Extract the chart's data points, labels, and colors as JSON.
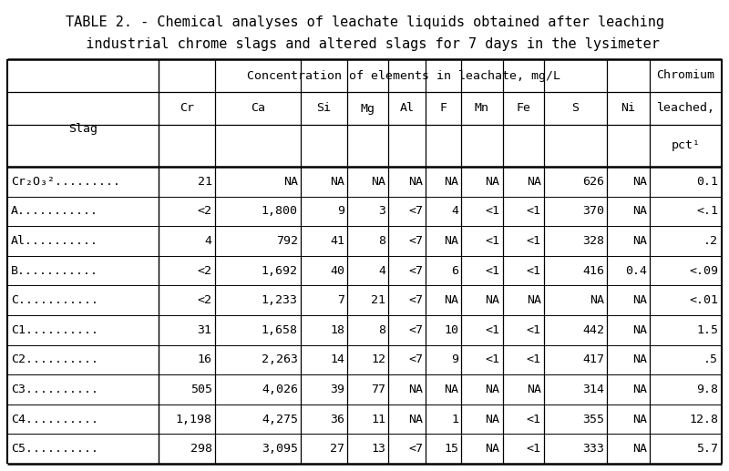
{
  "title_line1": "TABLE 2. - Chemical analyses of leachate liquids obtained after leaching",
  "title_line2": "  industrial chrome slags and altered slags for 7 days in the lysimeter",
  "header_group": "Concentration of elements in leachate, mg/L",
  "col_headers": [
    "Cr",
    "Ca",
    "Si",
    "Mg",
    "Al",
    "F",
    "Mn",
    "Fe",
    "S",
    "Ni"
  ],
  "slag_col_header": "Slag",
  "last_col_lines": [
    "Chromium",
    "leached,",
    "pct¹"
  ],
  "rows": [
    [
      "Cr₂O₃².........",
      "21",
      "NA",
      "NA",
      "NA",
      "NA",
      "NA",
      "NA",
      "NA",
      "626",
      "NA",
      "0.1"
    ],
    [
      "A...........",
      "<2",
      "1,800",
      "9",
      "3",
      "<7",
      "4",
      "<1",
      "<1",
      "370",
      "NA",
      "<.1"
    ],
    [
      "Al..........",
      "4",
      "792",
      "41",
      "8",
      "<7",
      "NA",
      "<1",
      "<1",
      "328",
      "NA",
      ".2"
    ],
    [
      "B...........",
      "<2",
      "1,692",
      "40",
      "4",
      "<7",
      "6",
      "<1",
      "<1",
      "416",
      "0.4",
      "<.09"
    ],
    [
      "C...........",
      "<2",
      "1,233",
      "7",
      "21",
      "<7",
      "NA",
      "NA",
      "NA",
      "NA",
      "NA",
      "<.01"
    ],
    [
      "C1..........",
      "31",
      "1,658",
      "18",
      "8",
      "<7",
      "10",
      "<1",
      "<1",
      "442",
      "NA",
      "1.5"
    ],
    [
      "C2..........",
      "16",
      "2,263",
      "14",
      "12",
      "<7",
      "9",
      "<1",
      "<1",
      "417",
      "NA",
      ".5"
    ],
    [
      "C3..........",
      "505",
      "4,026",
      "39",
      "77",
      "NA",
      "NA",
      "NA",
      "NA",
      "314",
      "NA",
      "9.8"
    ],
    [
      "C4..........",
      "1,198",
      "4,275",
      "36",
      "11",
      "NA",
      "1",
      "NA",
      "<1",
      "355",
      "NA",
      "12.8"
    ],
    [
      "C5..........",
      "298",
      "3,095",
      "27",
      "13",
      "<7",
      "15",
      "NA",
      "<1",
      "333",
      "NA",
      "5.7"
    ]
  ],
  "font_family": "DejaVu Sans Mono",
  "font_size": 9.5,
  "title_font_size": 11.0,
  "bg_color": "#ffffff",
  "text_color": "#000000",
  "col_widths_rel": [
    2.2,
    0.82,
    1.25,
    0.68,
    0.6,
    0.54,
    0.52,
    0.6,
    0.6,
    0.92,
    0.62,
    1.05
  ]
}
